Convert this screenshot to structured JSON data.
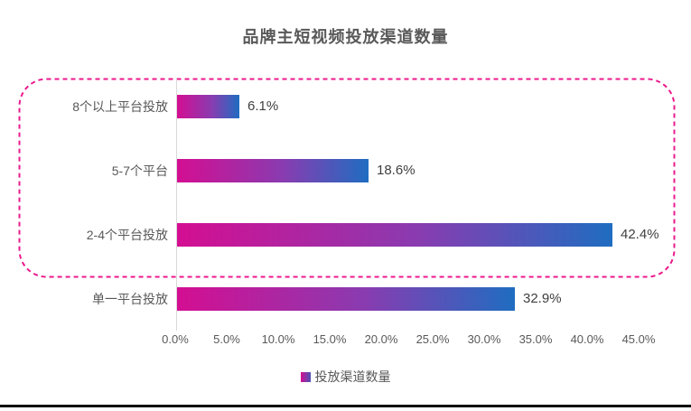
{
  "chart_data": {
    "type": "bar",
    "orientation": "horizontal",
    "title": "品牌主短视频投放渠道数量",
    "categories": [
      "8个以上平台投放",
      "5-7个平台",
      "2-4个平台投放",
      "单一平台投放"
    ],
    "values": [
      6.1,
      18.6,
      42.4,
      32.9
    ],
    "value_labels": [
      "6.1%",
      "18.6%",
      "42.4%",
      "32.9%"
    ],
    "x_ticks": [
      "0.0%",
      "5.0%",
      "10.0%",
      "15.0%",
      "20.0%",
      "25.0%",
      "30.0%",
      "35.0%",
      "40.0%",
      "45.0%"
    ],
    "xlim": [
      0,
      45
    ],
    "grid": false,
    "legend": {
      "label": "投放渠道数量",
      "position": "bottom"
    },
    "colors": {
      "bar_gradient_start": "#d40e92",
      "bar_gradient_end": "#1f6dc1",
      "highlight_box": "#eb1a8d",
      "axis_line": "#d9d9d9",
      "title_text": "#595959",
      "label_text": "#595959",
      "value_text": "#404040",
      "bottom_border": "#060606"
    },
    "highlight_box": {
      "style": "dashed-rounded",
      "encloses_categories": [
        "8个以上平台投放",
        "5-7个平台",
        "2-4个平台投放"
      ]
    }
  }
}
